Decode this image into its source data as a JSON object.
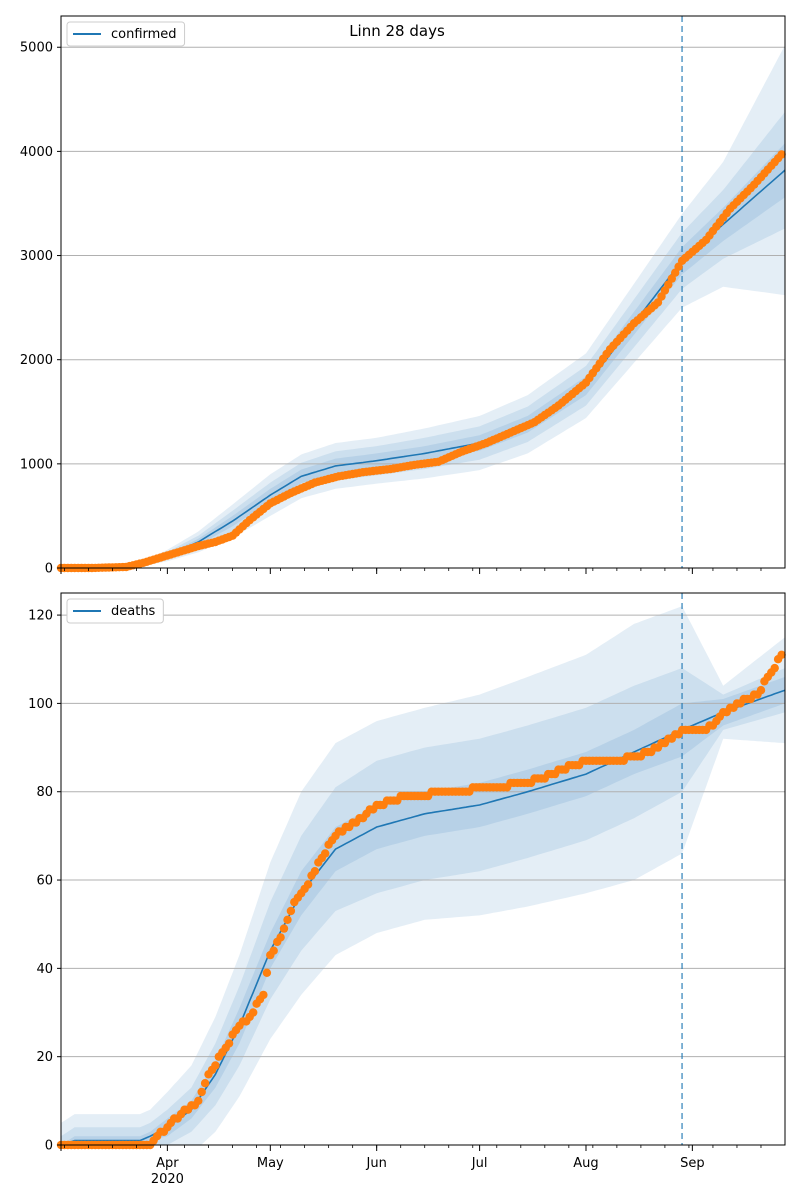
{
  "figure_title": "Linn 28 days",
  "colors": {
    "model": "#1f77b4",
    "observed": "#ff7f0e",
    "band": "#1f77b4",
    "forecast_line": "#1f77b4"
  },
  "chart_data": [
    {
      "type": "line",
      "name": "confirmed-panel",
      "title": "Linn 28 days",
      "legend": [
        "confirmed"
      ],
      "legend_position": "top-left",
      "grid": "y",
      "xlim": [
        "2020-03-01",
        "2020-09-28"
      ],
      "ylim": [
        0,
        5300
      ],
      "yticks": [
        0,
        1000,
        2000,
        3000,
        4000,
        5000
      ],
      "forecast_start": "2020-08-29",
      "series": [
        {
          "name": "confirmed",
          "kind": "model",
          "x": [
            "2020-03-01",
            "2020-03-15",
            "2020-03-25",
            "2020-04-01",
            "2020-04-10",
            "2020-04-20",
            "2020-05-01",
            "2020-05-10",
            "2020-05-20",
            "2020-06-01",
            "2020-06-15",
            "2020-07-01",
            "2020-07-15",
            "2020-08-01",
            "2020-08-15",
            "2020-08-29",
            "2020-09-10",
            "2020-09-28"
          ],
          "y": [
            0,
            5,
            40,
            120,
            250,
            450,
            700,
            880,
            980,
            1030,
            1100,
            1200,
            1380,
            1750,
            2350,
            2950,
            3300,
            3820
          ],
          "band_halfwidth": [
            [
              0,
              2,
              6,
              15,
              30,
              50,
              60,
              65,
              70,
              70,
              70,
              75,
              80,
              90,
              110,
              130,
              160,
              260
            ],
            [
              0,
              5,
              14,
              35,
              60,
              100,
              120,
              130,
              140,
              140,
              150,
              160,
              170,
              190,
              230,
              270,
              330,
              560
            ],
            [
              0,
              8,
              22,
              55,
              100,
              160,
              200,
              210,
              220,
              220,
              240,
              260,
              280,
              310,
              380,
              450,
              600,
              1200
            ]
          ]
        },
        {
          "name": "confirmed-observed",
          "kind": "observed",
          "x": [
            "2020-03-01",
            "2020-03-10",
            "2020-03-20",
            "2020-03-25",
            "2020-03-30",
            "2020-04-05",
            "2020-04-10",
            "2020-04-15",
            "2020-04-20",
            "2020-04-25",
            "2020-05-01",
            "2020-05-07",
            "2020-05-14",
            "2020-05-21",
            "2020-05-28",
            "2020-06-05",
            "2020-06-12",
            "2020-06-19",
            "2020-06-26",
            "2020-07-03",
            "2020-07-10",
            "2020-07-17",
            "2020-07-24",
            "2020-08-01",
            "2020-08-08",
            "2020-08-15",
            "2020-08-22",
            "2020-08-29",
            "2020-09-05",
            "2020-09-12",
            "2020-09-19",
            "2020-09-27"
          ],
          "y": [
            0,
            0,
            10,
            50,
            100,
            160,
            210,
            250,
            310,
            460,
            620,
            720,
            820,
            880,
            920,
            950,
            990,
            1020,
            1120,
            1200,
            1300,
            1400,
            1560,
            1780,
            2100,
            2350,
            2550,
            2950,
            3150,
            3450,
            3680,
            3970
          ]
        }
      ]
    },
    {
      "type": "line",
      "name": "deaths-panel",
      "title": "",
      "legend": [
        "deaths"
      ],
      "legend_position": "top-left",
      "grid": "y",
      "xlim": [
        "2020-03-01",
        "2020-09-28"
      ],
      "ylim": [
        0,
        125
      ],
      "yticks": [
        0,
        20,
        40,
        60,
        80,
        100,
        120
      ],
      "xtick_labels": [
        "Apr\n2020",
        "May",
        "Jun",
        "Jul",
        "Aug",
        "Sep"
      ],
      "xtick_dates": [
        "2020-04-01",
        "2020-05-01",
        "2020-06-01",
        "2020-07-01",
        "2020-08-01",
        "2020-09-01"
      ],
      "forecast_start": "2020-08-29",
      "series": [
        {
          "name": "deaths",
          "kind": "model",
          "x": [
            "2020-03-01",
            "2020-03-05",
            "2020-03-24",
            "2020-03-27",
            "2020-04-01",
            "2020-04-08",
            "2020-04-15",
            "2020-04-22",
            "2020-05-01",
            "2020-05-10",
            "2020-05-20",
            "2020-06-01",
            "2020-06-15",
            "2020-07-01",
            "2020-07-15",
            "2020-08-01",
            "2020-08-15",
            "2020-08-29",
            "2020-09-10",
            "2020-09-28"
          ],
          "y": [
            0,
            1,
            1,
            2,
            4,
            8,
            16,
            27,
            44,
            57,
            67,
            72,
            75,
            77,
            80,
            84,
            89,
            94,
            98,
            103
          ],
          "band_halfwidth": [
            [
              0,
              1,
              1,
              1,
              2,
              2,
              3,
              4,
              4,
              5,
              5,
              5,
              5,
              5,
              5,
              5,
              5,
              6,
              3,
              3
            ],
            [
              2,
              3,
              3,
              3,
              4,
              5,
              7,
              9,
              11,
              13,
              14,
              15,
              15,
              15,
              15,
              15,
              15,
              14,
              4,
              5
            ],
            [
              5,
              6,
              6,
              6,
              8,
              10,
              13,
              16,
              20,
              23,
              24,
              24,
              24,
              25,
              26,
              27,
              29,
              28,
              6,
              12
            ]
          ]
        },
        {
          "name": "deaths-observed",
          "kind": "observed",
          "x": [
            "2020-03-01",
            "2020-03-27",
            "2020-03-29",
            "2020-04-01",
            "2020-04-05",
            "2020-04-10",
            "2020-04-13",
            "2020-04-18",
            "2020-04-22",
            "2020-04-25",
            "2020-04-29",
            "2020-05-01",
            "2020-05-04",
            "2020-05-08",
            "2020-05-12",
            "2020-05-16",
            "2020-05-20",
            "2020-05-26",
            "2020-06-01",
            "2020-06-10",
            "2020-06-23",
            "2020-07-15",
            "2020-07-22",
            "2020-08-01",
            "2020-08-10",
            "2020-08-20",
            "2020-08-29",
            "2020-09-05",
            "2020-09-12",
            "2020-09-20",
            "2020-09-27"
          ],
          "y": [
            0,
            0,
            2,
            4,
            7,
            10,
            16,
            22,
            27,
            29,
            34,
            43,
            47,
            55,
            59,
            65,
            70,
            73,
            77,
            79,
            80,
            82,
            84,
            87,
            87,
            89,
            94,
            94,
            99,
            102,
            111
          ]
        }
      ]
    }
  ]
}
